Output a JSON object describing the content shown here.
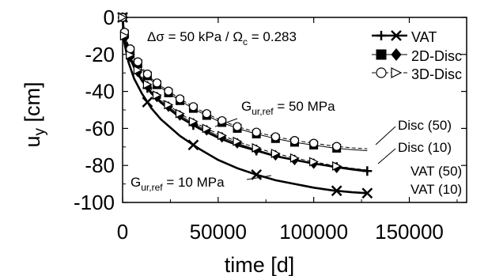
{
  "chart_data": {
    "type": "line",
    "xlabel": "time [d]",
    "ylabel": "u",
    "ylabel_sub": "y",
    "ylabel_unit": " [cm]",
    "xlim": [
      0,
      180000
    ],
    "ylim": [
      -100,
      0
    ],
    "xticks": [
      0,
      50000,
      100000,
      150000
    ],
    "yticks": [
      0,
      -20,
      -40,
      -60,
      -80,
      -100
    ],
    "grid": false,
    "legend_position": "top-right",
    "legend": [
      {
        "label": "VAT",
        "markers": [
          "plus",
          "x"
        ],
        "fill": "filled"
      },
      {
        "label": "2D-Disc",
        "markers": [
          "square",
          "diamond"
        ],
        "fill": "filled"
      },
      {
        "label": "3D-Disc",
        "markers": [
          "circle",
          "triangle-right"
        ],
        "fill": "open"
      }
    ],
    "series": [
      {
        "name": "VAT (50)",
        "method": "VAT",
        "gref": 50,
        "style": "thick",
        "x": [
          0,
          1000,
          3000,
          6000,
          10000,
          15000,
          20000,
          30000,
          40000,
          50000,
          60000,
          70000,
          80000,
          90000,
          100000,
          110000,
          120000,
          128000
        ],
        "y": [
          0,
          -12,
          -20,
          -27,
          -34,
          -41,
          -46,
          -54,
          -60,
          -65,
          -69,
          -72,
          -75,
          -77,
          -79,
          -80.5,
          -82,
          -83
        ]
      },
      {
        "name": "VAT (10)",
        "method": "VAT",
        "gref": 10,
        "style": "thick",
        "x": [
          0,
          1000,
          3000,
          6000,
          10000,
          15000,
          20000,
          30000,
          40000,
          50000,
          60000,
          70000,
          80000,
          90000,
          100000,
          110000,
          120000,
          128000
        ],
        "y": [
          0,
          -14,
          -24,
          -33,
          -41,
          -49,
          -55,
          -64,
          -71,
          -77,
          -81.5,
          -85,
          -88,
          -90,
          -92,
          -93.5,
          -94.5,
          -95
        ]
      },
      {
        "name": "2D-Disc (50)",
        "method": "2D-Disc",
        "gref": 50,
        "style": "thin",
        "x": [
          0,
          1000,
          3000,
          6000,
          10000,
          15000,
          20000,
          30000,
          40000,
          50000,
          60000,
          70000,
          80000,
          90000,
          100000,
          110000,
          120000,
          128000
        ],
        "y": [
          0,
          -9,
          -16,
          -22,
          -28,
          -34,
          -38,
          -45,
          -51,
          -56,
          -60,
          -63,
          -65.5,
          -67.5,
          -69,
          -70.5,
          -71.5,
          -72
        ]
      },
      {
        "name": "2D-Disc (10)",
        "method": "2D-Disc",
        "gref": 10,
        "style": "thin",
        "x": [
          0,
          1000,
          3000,
          6000,
          10000,
          15000,
          20000,
          30000,
          40000,
          50000,
          60000,
          70000,
          80000,
          90000,
          100000,
          110000,
          120000,
          128000
        ],
        "y": [
          0,
          -11,
          -19,
          -26,
          -33,
          -40,
          -45,
          -53,
          -59,
          -64,
          -68,
          -71.5,
          -74.5,
          -77,
          -79,
          -81,
          -82.5,
          -83.5
        ]
      },
      {
        "name": "3D-Disc (50)",
        "method": "3D-Disc",
        "gref": 50,
        "style": "thin",
        "x": [
          0,
          1000,
          3000,
          6000,
          10000,
          15000,
          20000,
          30000,
          40000,
          50000,
          60000,
          70000,
          80000,
          90000,
          100000,
          110000,
          120000,
          128000
        ],
        "y": [
          0,
          -8,
          -15,
          -21,
          -27,
          -33,
          -37,
          -44,
          -50,
          -55,
          -59,
          -62,
          -64.5,
          -66.5,
          -68,
          -69.5,
          -70.5,
          -71
        ]
      },
      {
        "name": "3D-Disc (10)",
        "method": "3D-Disc",
        "gref": 10,
        "style": "thin",
        "x": [
          0,
          1000,
          3000,
          6000,
          10000,
          15000,
          20000,
          30000,
          40000,
          50000,
          60000,
          70000,
          80000,
          90000,
          100000,
          110000,
          120000,
          128000
        ],
        "y": [
          0,
          -10,
          -18,
          -25,
          -32,
          -39,
          -44,
          -52,
          -58,
          -63,
          -67,
          -70.5,
          -73.5,
          -76,
          -78,
          -80,
          -81.5,
          -82.5
        ]
      }
    ],
    "marker_x": [
      1000,
      4000,
      8000,
      13000,
      18000,
      24000,
      30000,
      37000,
      44000,
      52000,
      60000,
      70000,
      80000,
      90000,
      100000,
      112000
    ],
    "annotations": {
      "title": "Δσ = 50 kPa / Ω",
      "title_sub": "c",
      "title_tail": " = 0.283",
      "g50_pre": "G",
      "g50_sub": "ur,ref",
      "g50_post": " = 50 MPa",
      "g10_pre": "G",
      "g10_sub": "ur,ref",
      "g10_post": " = 10 MPa",
      "disc50": "Disc (50)",
      "disc10": "Disc (10)",
      "vat50": "VAT (50)",
      "vat10": "VAT (10)"
    }
  }
}
